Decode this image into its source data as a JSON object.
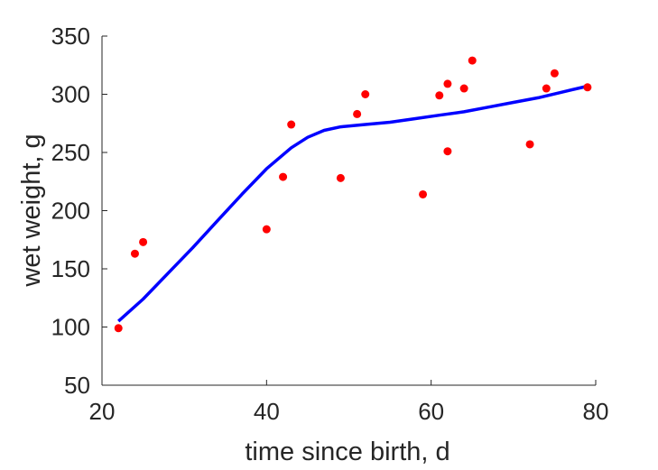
{
  "chart_data": {
    "type": "scatter",
    "xlabel": "time since birth, d",
    "ylabel": "wet weight, g",
    "xlim": [
      20,
      80
    ],
    "ylim": [
      50,
      350
    ],
    "xticks": [
      20,
      40,
      60,
      80
    ],
    "yticks": [
      50,
      100,
      150,
      200,
      250,
      300,
      350
    ],
    "grid": false,
    "series": [
      {
        "kind": "scatter",
        "color": "#ff0000",
        "points": [
          [
            22,
            99
          ],
          [
            24,
            163
          ],
          [
            25,
            173
          ],
          [
            40,
            184
          ],
          [
            42,
            229
          ],
          [
            43,
            274
          ],
          [
            49,
            228
          ],
          [
            51,
            283
          ],
          [
            52,
            300
          ],
          [
            59,
            214
          ],
          [
            61,
            299
          ],
          [
            62,
            309
          ],
          [
            62,
            251
          ],
          [
            64,
            305
          ],
          [
            65,
            329
          ],
          [
            72,
            257
          ],
          [
            74,
            305
          ],
          [
            75,
            318
          ],
          [
            79,
            306
          ]
        ]
      },
      {
        "kind": "line",
        "color": "#0000ff",
        "points": [
          [
            22,
            105
          ],
          [
            25,
            124
          ],
          [
            28,
            146
          ],
          [
            31,
            168
          ],
          [
            34,
            191
          ],
          [
            37,
            214
          ],
          [
            40,
            236
          ],
          [
            43,
            254
          ],
          [
            45,
            263
          ],
          [
            47,
            269
          ],
          [
            49,
            272
          ],
          [
            52,
            274
          ],
          [
            55,
            276
          ],
          [
            58,
            279
          ],
          [
            61,
            282
          ],
          [
            64,
            285
          ],
          [
            67,
            289
          ],
          [
            70,
            293
          ],
          [
            73,
            297
          ],
          [
            76,
            302
          ],
          [
            79,
            307
          ]
        ]
      }
    ]
  }
}
